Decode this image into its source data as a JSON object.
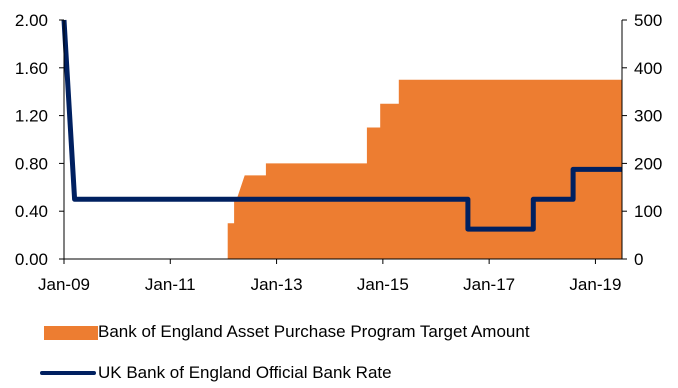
{
  "chart_data": {
    "type": "area+line",
    "title": "",
    "x_tick_labels": [
      "Jan-09",
      "Jan-11",
      "Jan-13",
      "Jan-15",
      "Jan-17",
      "Jan-19"
    ],
    "x_range": [
      2009.0,
      2019.5
    ],
    "left_axis": {
      "ylim": [
        0,
        2.0
      ],
      "ticks": [
        "0.00",
        "0.40",
        "0.80",
        "1.20",
        "1.60",
        "2.00"
      ]
    },
    "right_axis": {
      "ylim": [
        0,
        500
      ],
      "ticks": [
        "0",
        "100",
        "200",
        "300",
        "400",
        "500"
      ]
    },
    "grid": false,
    "series": [
      {
        "name": "Bank of England Asset Purchase Program Target Amount",
        "type": "area",
        "axis": "right",
        "color": "#ED7D31",
        "points": [
          [
            2012.08,
            0
          ],
          [
            2012.08,
            75
          ],
          [
            2012.2,
            75
          ],
          [
            2012.2,
            125
          ],
          [
            2012.25,
            125
          ],
          [
            2012.4,
            175
          ],
          [
            2012.55,
            175
          ],
          [
            2012.58,
            175
          ],
          [
            2012.58,
            175
          ],
          [
            2012.62,
            175
          ],
          [
            2012.8,
            175
          ],
          [
            2012.8,
            200
          ],
          [
            2014.7,
            200
          ],
          [
            2014.7,
            275
          ],
          [
            2014.95,
            275
          ],
          [
            2014.95,
            325
          ],
          [
            2015.3,
            325
          ],
          [
            2015.3,
            375
          ],
          [
            2019.5,
            375
          ],
          [
            2019.5,
            0
          ]
        ]
      },
      {
        "name": "UK Bank of England Official Bank Rate",
        "type": "line",
        "axis": "left",
        "color": "#002060",
        "points": [
          [
            2009.0,
            2.0
          ],
          [
            2009.2,
            0.5
          ],
          [
            2016.6,
            0.5
          ],
          [
            2016.6,
            0.25
          ],
          [
            2017.83,
            0.25
          ],
          [
            2017.83,
            0.5
          ],
          [
            2018.58,
            0.5
          ],
          [
            2018.58,
            0.75
          ],
          [
            2019.5,
            0.75
          ]
        ]
      }
    ],
    "legend_position": "bottom"
  },
  "legend": {
    "area_label": "Bank of England Asset Purchase Program Target Amount",
    "line_label": "UK Bank of England Official Bank Rate",
    "area_color": "#ED7D31",
    "line_color": "#002060"
  }
}
